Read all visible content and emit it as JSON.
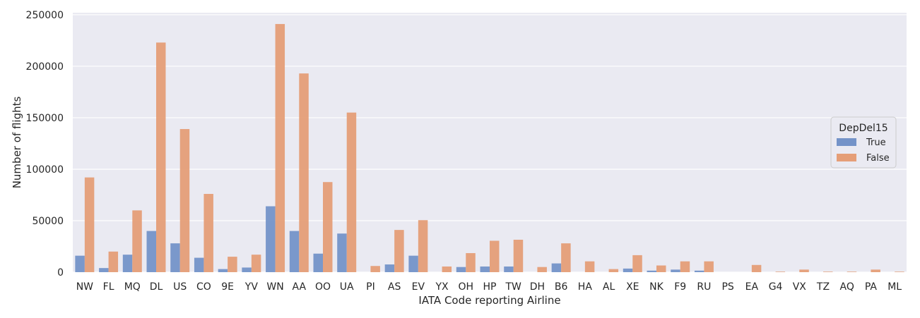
{
  "chart_data": {
    "type": "bar",
    "xlabel": "IATA Code reporting Airline",
    "ylabel": "Number of flights",
    "ylim": [
      0,
      252000
    ],
    "yticks": [
      0,
      50000,
      100000,
      150000,
      200000,
      250000
    ],
    "grid": true,
    "background": "#eaeaf2",
    "legend": {
      "title": "DepDel15",
      "placement": "center-right"
    },
    "categories": [
      "NW",
      "FL",
      "MQ",
      "DL",
      "US",
      "CO",
      "9E",
      "YV",
      "WN",
      "AA",
      "OO",
      "UA",
      "PI",
      "AS",
      "EV",
      "YX",
      "OH",
      "HP",
      "TW",
      "DH",
      "B6",
      "HA",
      "AL",
      "XE",
      "NK",
      "F9",
      "RU",
      "PS",
      "EA",
      "G4",
      "VX",
      "TZ",
      "AQ",
      "PA",
      "ML"
    ],
    "series": [
      {
        "name": "True",
        "color": "#7493c8",
        "values": [
          16000,
          4000,
          17000,
          40000,
          28000,
          14000,
          3000,
          4500,
          64000,
          40000,
          18000,
          37500,
          0,
          7500,
          16000,
          0,
          5000,
          5500,
          5500,
          0,
          8500,
          0,
          0,
          3500,
          1500,
          2500,
          1500,
          0,
          0,
          0,
          0,
          0,
          0,
          0,
          0
        ]
      },
      {
        "name": "False",
        "color": "#e59e77",
        "values": [
          92000,
          20000,
          60000,
          223000,
          139000,
          76000,
          15000,
          17000,
          241000,
          193000,
          87500,
          155000,
          6000,
          41000,
          50500,
          5500,
          18500,
          30500,
          31500,
          5000,
          28000,
          10500,
          3000,
          16500,
          6500,
          10500,
          10500,
          0,
          7000,
          500,
          2500,
          500,
          500,
          2500,
          500
        ]
      }
    ]
  }
}
